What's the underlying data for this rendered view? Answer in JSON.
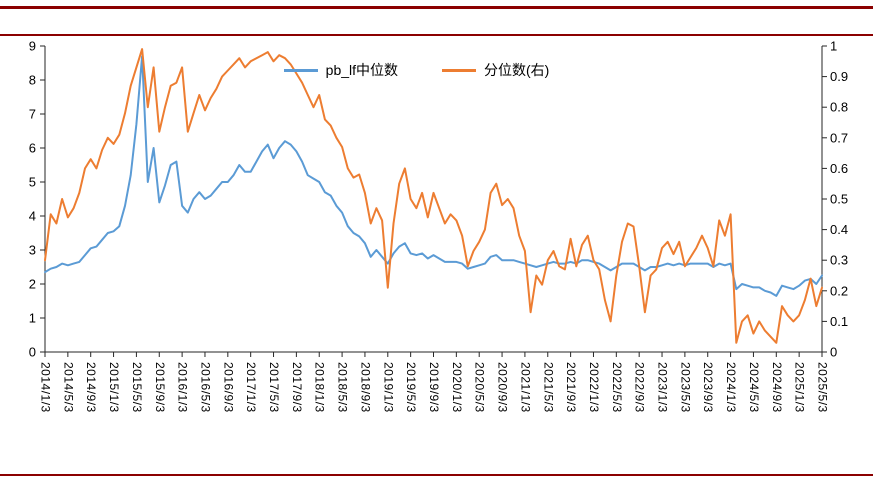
{
  "page": {
    "rule_color": "#8b0000",
    "background": "#ffffff"
  },
  "chart_data": {
    "type": "line",
    "title": "",
    "xlabel": "",
    "ylabel_left": "",
    "ylabel_right": "",
    "grid": false,
    "legend_position": "top-center",
    "legend": [
      {
        "name": "pb_lf中位数",
        "color": "#5B9BD5",
        "axis": "left"
      },
      {
        "name": "分位数(右)",
        "color": "#ED7D31",
        "axis": "right"
      }
    ],
    "left_axis": {
      "min": 0,
      "max": 9,
      "step": 1,
      "tick_labels": [
        "0",
        "1",
        "2",
        "3",
        "4",
        "5",
        "6",
        "7",
        "8",
        "9"
      ]
    },
    "right_axis": {
      "min": 0,
      "max": 1,
      "step": 0.1,
      "tick_labels": [
        "0",
        "0.1",
        "0.2",
        "0.3",
        "0.4",
        "0.5",
        "0.6",
        "0.7",
        "0.8",
        "0.9",
        "1"
      ]
    },
    "x_tick_every": 4,
    "x_tick_labels": [
      "2014/1/3",
      "2014/5/3",
      "2014/9/3",
      "2015/1/3",
      "2015/5/3",
      "2015/9/3",
      "2016/1/3",
      "2016/5/3",
      "2016/9/3",
      "2017/1/3",
      "2017/5/3",
      "2017/9/3",
      "2018/1/3",
      "2018/5/3",
      "2018/9/3",
      "2019/1/3",
      "2019/5/3",
      "2019/9/3",
      "2020/1/3",
      "2020/5/3",
      "2020/9/3",
      "2021/1/3",
      "2021/5/3",
      "2021/9/3",
      "2022/1/3",
      "2022/5/3",
      "2022/9/3",
      "2023/1/3",
      "2023/5/3",
      "2023/9/3",
      "2024/1/3",
      "2024/5/3",
      "2024/9/3",
      "2025/1/3",
      "2025/5/3"
    ],
    "series": [
      {
        "name": "pb_lf中位数",
        "color": "#5B9BD5",
        "axis": "left",
        "values": [
          2.35,
          2.45,
          2.5,
          2.6,
          2.55,
          2.6,
          2.65,
          2.85,
          3.05,
          3.1,
          3.3,
          3.5,
          3.55,
          3.7,
          4.3,
          5.2,
          6.7,
          8.7,
          5.0,
          6.0,
          4.4,
          4.9,
          5.5,
          5.6,
          4.3,
          4.1,
          4.5,
          4.7,
          4.5,
          4.6,
          4.8,
          5.0,
          5.0,
          5.2,
          5.5,
          5.3,
          5.3,
          5.6,
          5.9,
          6.1,
          5.7,
          6.0,
          6.2,
          6.1,
          5.9,
          5.6,
          5.2,
          5.1,
          5.0,
          4.7,
          4.6,
          4.3,
          4.1,
          3.7,
          3.5,
          3.4,
          3.2,
          2.8,
          3.0,
          2.8,
          2.6,
          2.9,
          3.1,
          3.2,
          2.9,
          2.85,
          2.9,
          2.75,
          2.85,
          2.75,
          2.65,
          2.65,
          2.65,
          2.6,
          2.45,
          2.5,
          2.55,
          2.6,
          2.8,
          2.85,
          2.7,
          2.7,
          2.7,
          2.65,
          2.6,
          2.55,
          2.5,
          2.55,
          2.6,
          2.65,
          2.6,
          2.6,
          2.65,
          2.6,
          2.7,
          2.7,
          2.65,
          2.6,
          2.5,
          2.4,
          2.5,
          2.6,
          2.6,
          2.6,
          2.5,
          2.4,
          2.5,
          2.5,
          2.55,
          2.6,
          2.55,
          2.6,
          2.55,
          2.6,
          2.6,
          2.6,
          2.6,
          2.5,
          2.6,
          2.55,
          2.6,
          1.85,
          2.0,
          1.95,
          1.9,
          1.9,
          1.8,
          1.75,
          1.65,
          1.95,
          1.9,
          1.85,
          1.95,
          2.1,
          2.15,
          2.0,
          2.25
        ]
      },
      {
        "name": "分位数(右)",
        "color": "#ED7D31",
        "axis": "right",
        "values": [
          0.3,
          0.45,
          0.42,
          0.5,
          0.44,
          0.47,
          0.52,
          0.6,
          0.63,
          0.6,
          0.66,
          0.7,
          0.68,
          0.71,
          0.78,
          0.87,
          0.93,
          0.99,
          0.8,
          0.93,
          0.72,
          0.8,
          0.87,
          0.88,
          0.93,
          0.72,
          0.78,
          0.84,
          0.79,
          0.83,
          0.86,
          0.9,
          0.92,
          0.94,
          0.96,
          0.93,
          0.95,
          0.96,
          0.97,
          0.98,
          0.95,
          0.97,
          0.96,
          0.94,
          0.91,
          0.88,
          0.84,
          0.8,
          0.84,
          0.76,
          0.74,
          0.7,
          0.67,
          0.6,
          0.57,
          0.58,
          0.52,
          0.42,
          0.47,
          0.43,
          0.21,
          0.42,
          0.55,
          0.6,
          0.5,
          0.47,
          0.52,
          0.44,
          0.52,
          0.47,
          0.42,
          0.45,
          0.43,
          0.38,
          0.28,
          0.33,
          0.36,
          0.4,
          0.52,
          0.55,
          0.48,
          0.5,
          0.47,
          0.38,
          0.33,
          0.13,
          0.25,
          0.22,
          0.3,
          0.33,
          0.28,
          0.27,
          0.37,
          0.28,
          0.35,
          0.38,
          0.3,
          0.27,
          0.17,
          0.1,
          0.25,
          0.36,
          0.42,
          0.41,
          0.28,
          0.13,
          0.25,
          0.27,
          0.34,
          0.36,
          0.32,
          0.36,
          0.28,
          0.31,
          0.34,
          0.38,
          0.34,
          0.28,
          0.43,
          0.38,
          0.45,
          0.03,
          0.1,
          0.12,
          0.06,
          0.1,
          0.07,
          0.05,
          0.03,
          0.15,
          0.12,
          0.1,
          0.12,
          0.17,
          0.24,
          0.15,
          0.21
        ]
      }
    ]
  }
}
